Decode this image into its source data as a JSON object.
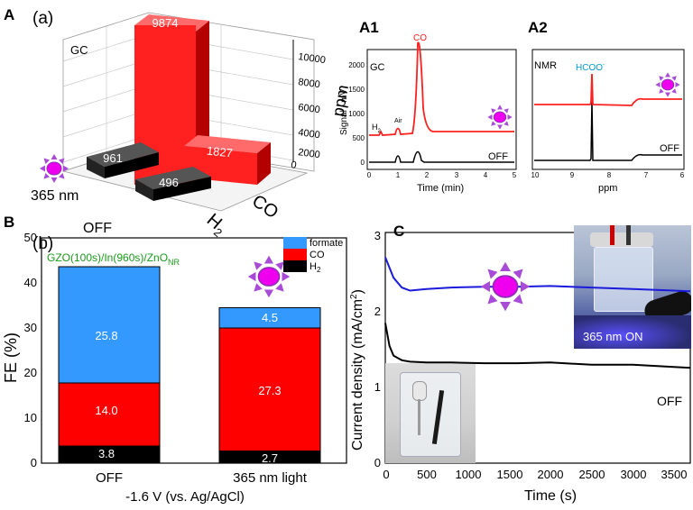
{
  "panel_labels": {
    "A": "A",
    "a": "(a)",
    "A1": "A1",
    "A2": "A2",
    "B": "B",
    "b": "(b)",
    "C": "C"
  },
  "chart_data": [
    {
      "id": "panel-a",
      "type": "bar",
      "title": "GC",
      "categories": [
        "H2",
        "CO"
      ],
      "series": [
        {
          "name": "OFF",
          "values": [
            496,
            null
          ]
        },
        {
          "name": "365 nm",
          "values": [
            961,
            9874
          ]
        },
        {
          "name": "OFF (CO)",
          "values": [
            null,
            1827
          ]
        }
      ],
      "bar_labels": [
        "9874",
        "1827",
        "961",
        "496"
      ],
      "zlabel": "ppm",
      "z_ticks": [
        "0",
        "2000",
        "4000",
        "6000",
        "8000",
        "10000"
      ],
      "ylim": [
        0,
        10000
      ],
      "axis_labels": {
        "co": "CO",
        "h2": "H",
        "h2_sub": "2",
        "off": "OFF",
        "light": "365 nm"
      }
    },
    {
      "id": "panel-a1",
      "type": "line",
      "title": "GC",
      "xlabel": "Time (min)",
      "ylabel": "Signal / mV",
      "x_ticks": [
        "0",
        "1",
        "2",
        "3",
        "4",
        "5"
      ],
      "y_ticks": [
        "0",
        "500",
        "1000",
        "1500",
        "2000"
      ],
      "annotations": {
        "co": "CO",
        "air": "Air",
        "h2": "H",
        "h2_sub": "2",
        "off": "OFF"
      },
      "series": [
        {
          "name": "365 nm",
          "color": "#ff2020",
          "peaks": [
            {
              "time": 0.4,
              "height": 40
            },
            {
              "time": 1.1,
              "height": 250
            },
            {
              "time": 1.75,
              "height": 1850
            }
          ]
        },
        {
          "name": "OFF",
          "color": "#000000",
          "peaks": [
            {
              "time": 1.1,
              "height": 180
            },
            {
              "time": 1.75,
              "height": 320
            }
          ]
        }
      ]
    },
    {
      "id": "panel-a2",
      "type": "line",
      "title": "NMR",
      "xlabel": "ppm",
      "x_ticks": [
        "10",
        "9",
        "8",
        "7",
        "6"
      ],
      "annotations": {
        "formate": "HCOO",
        "formate_sup": "-",
        "off": "OFF"
      },
      "series": [
        {
          "name": "365 nm",
          "color": "#ff2020",
          "peak_ppm": 8.45
        },
        {
          "name": "OFF",
          "color": "#000000",
          "peak_ppm": 8.45
        }
      ]
    },
    {
      "id": "panel-b",
      "type": "bar",
      "stacked": true,
      "categories": [
        "OFF",
        "365 nm light"
      ],
      "series": [
        {
          "name": "H2",
          "color": "#000000",
          "values": [
            3.8,
            2.7
          ]
        },
        {
          "name": "CO",
          "color": "#ff0000",
          "values": [
            14.0,
            27.3
          ]
        },
        {
          "name": "formate",
          "color": "#3399ff",
          "values": [
            25.8,
            4.5
          ]
        }
      ],
      "labels": {
        "off": [
          "3.8",
          "14.0",
          "25.8"
        ],
        "light": [
          "2.7",
          "27.3",
          "4.5"
        ]
      },
      "ylabel": "FE (%)",
      "xlabel": "-1.6 V (vs. Ag/AgCl)",
      "ylim": [
        0,
        50
      ],
      "y_ticks": [
        "0",
        "10",
        "20",
        "30",
        "40",
        "50"
      ],
      "legend": {
        "formate": "formate",
        "co": "CO",
        "h2": "H",
        "h2_sub": "2"
      },
      "sample": {
        "main": "GZO(100s)/In(960s)/ZnO",
        "sub": "NR"
      }
    },
    {
      "id": "panel-c",
      "type": "line",
      "xlabel": "Time (s)",
      "ylabel": "Current density (mA/cm",
      "ylabel_sup": "2",
      "ylabel_end": ")",
      "xlim": [
        0,
        3700
      ],
      "ylim": [
        0,
        3
      ],
      "x_ticks": [
        "0",
        "500",
        "1000",
        "1500",
        "2000",
        "2500",
        "3000",
        "3500"
      ],
      "y_ticks": [
        "0",
        "1",
        "2",
        "3"
      ],
      "off_label": "OFF",
      "photo_label": "365 nm ON",
      "series": [
        {
          "name": "365 nm ON",
          "color": "#1a1adb",
          "x": [
            0,
            100,
            200,
            300,
            500,
            800,
            1200,
            1600,
            2000,
            2500,
            3000,
            3500,
            3700
          ],
          "y": [
            2.72,
            2.45,
            2.32,
            2.28,
            2.3,
            2.32,
            2.33,
            2.33,
            2.34,
            2.32,
            2.3,
            2.28,
            2.27
          ]
        },
        {
          "name": "OFF",
          "color": "#000000",
          "x": [
            0,
            50,
            100,
            200,
            300,
            500,
            800,
            1200,
            1600,
            2000,
            2500,
            3000,
            3500,
            3700
          ],
          "y": [
            1.85,
            1.55,
            1.42,
            1.36,
            1.34,
            1.33,
            1.33,
            1.32,
            1.32,
            1.33,
            1.3,
            1.3,
            1.27,
            1.26
          ]
        }
      ]
    }
  ]
}
